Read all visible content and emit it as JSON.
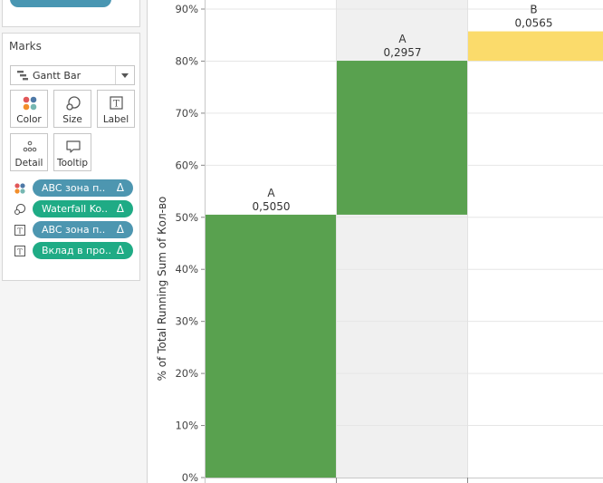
{
  "marks_panel": {
    "title": "Marks",
    "mark_type": "Gantt Bar",
    "buttons": [
      {
        "label": "Color",
        "icon": "color-dots-icon"
      },
      {
        "label": "Size",
        "icon": "size-icon"
      },
      {
        "label": "Label",
        "icon": "label-text-icon"
      },
      {
        "label": "Detail",
        "icon": "detail-dots-icon"
      },
      {
        "label": "Tooltip",
        "icon": "tooltip-icon"
      }
    ],
    "fields": [
      {
        "role": "color",
        "icon": "color-dots-icon",
        "label": "ABC зона п..",
        "delta": "Δ",
        "color": "#4d96b0"
      },
      {
        "role": "size",
        "icon": "size-icon",
        "label": "Waterfall Ko..",
        "delta": "Δ",
        "color": "#1fab85"
      },
      {
        "role": "label",
        "icon": "label-text-icon",
        "label": "ABC зона п..",
        "delta": "Δ",
        "color": "#4d96b0"
      },
      {
        "role": "label",
        "icon": "label-text-icon",
        "label": "Вклад в про..",
        "delta": "Δ",
        "color": "#1fab85"
      }
    ]
  },
  "chart_data": {
    "type": "bar",
    "subtype": "waterfall-gantt",
    "ylabel": "% of Total Running Sum of Кол-во",
    "y_ticks": [
      "0%",
      "10%",
      "20%",
      "30%",
      "40%",
      "50%",
      "60%",
      "70%",
      "80%",
      "90%"
    ],
    "ylim": [
      0,
      0.9
    ],
    "bars": [
      {
        "category_label": "A",
        "value_label": "0,5050",
        "start": 0.0,
        "end": 0.505,
        "color": "#59a14f"
      },
      {
        "category_label": "A",
        "value_label": "0,2957",
        "start": 0.505,
        "end": 0.8007,
        "color": "#59a14f"
      },
      {
        "category_label": "B",
        "value_label": "0,0565",
        "start": 0.8007,
        "end": 0.8572,
        "color": "#fbdb6b"
      }
    ],
    "column_band_colors": [
      "#ffffff",
      "#f0f0f0",
      "#ffffff"
    ],
    "grid": true
  }
}
